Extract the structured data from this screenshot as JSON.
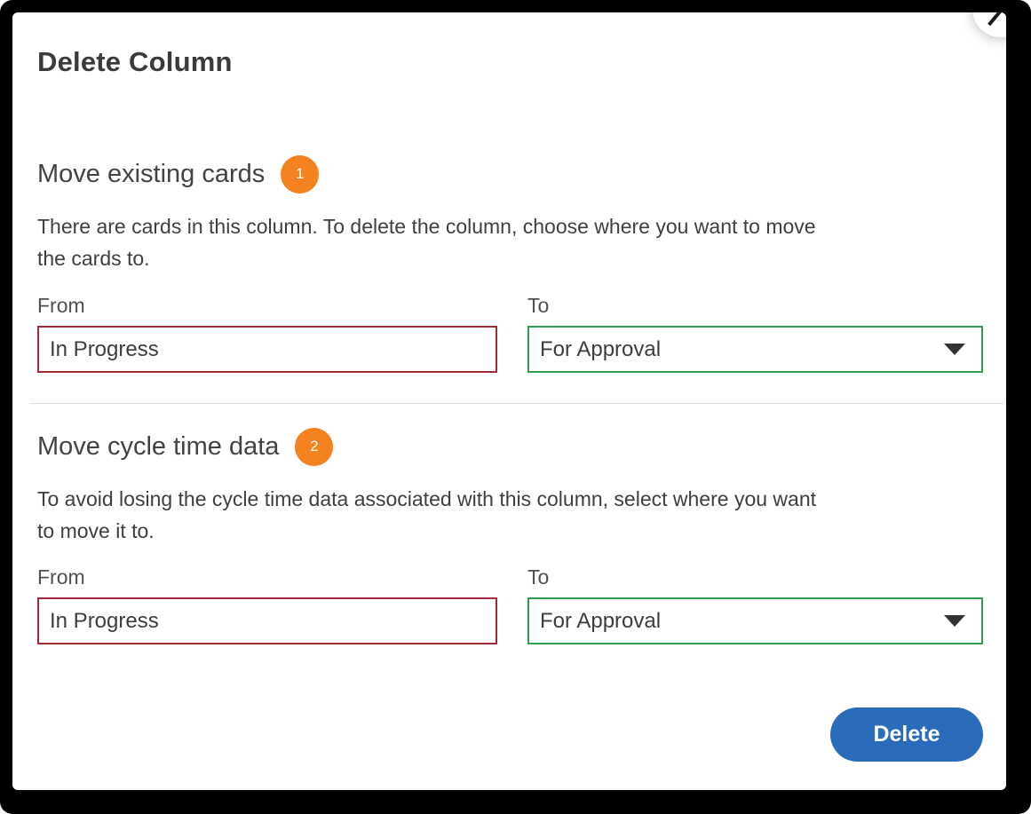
{
  "dialog": {
    "title": "Delete Column",
    "sections": [
      {
        "heading": "Move existing cards",
        "badge": "1",
        "description_lines": [
          "There are cards in this column. To delete the column, choose where you want to move",
          "the cards to."
        ],
        "from_label": "From",
        "from_value": "In Progress",
        "to_label": "To",
        "to_value": "For Approval"
      },
      {
        "heading": "Move cycle time data",
        "badge": "2",
        "description_lines": [
          "To avoid losing the cycle time data associated with this column, select where you want",
          "to move it to."
        ],
        "from_label": "From",
        "from_value": "In Progress",
        "to_label": "To",
        "to_value": "For Approval"
      }
    ],
    "delete_button_label": "Delete"
  },
  "colors": {
    "badge": "#f58220",
    "from_border": "#a02a3a",
    "to_border": "#2e9e4e",
    "button": "#2a6cba",
    "divider": "#d7dee2"
  }
}
